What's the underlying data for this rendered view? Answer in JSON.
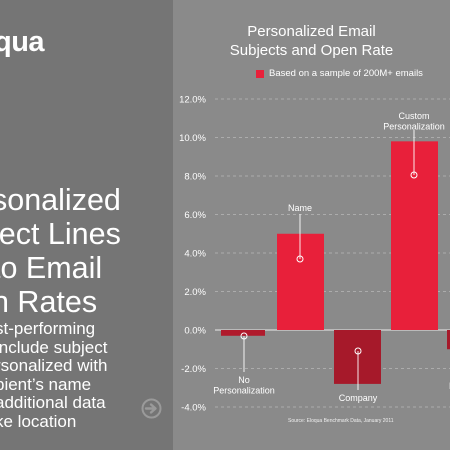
{
  "left": {
    "logo_text": "qua",
    "headline": "sonalized\nject Lines\nto Email\nn Rates",
    "subtext": "st-performing\ninclude subject\nrsonalized with\npient’s name\nadditional data\nke location",
    "arrow_icon": "arrow-right-circle-icon"
  },
  "chart_data": {
    "type": "bar",
    "title_lines": [
      "Personalized Email",
      "Subjects and Open Rate"
    ],
    "legend": "Based on a sample of 200M+ emails",
    "categories": [
      "No\nPersonalization",
      "Name",
      "Company",
      "Custom\nPersonalization",
      "E"
    ],
    "values": [
      -0.3,
      5.0,
      -2.8,
      9.8,
      -1.0
    ],
    "ylim": [
      -4.0,
      12.0
    ],
    "yticks": [
      "12.0%",
      "10.0%",
      "8.0%",
      "6.0%",
      "4.0%",
      "2.0%",
      "0.0%",
      "-2.0%",
      "-4.0%"
    ],
    "source": "Source: Eloqua Benchmark Data, January 2011",
    "colors": {
      "bar_positive": "#e8203a",
      "bar_negative": "#a6192a",
      "bar_negative_small": "#b01a2c"
    }
  }
}
